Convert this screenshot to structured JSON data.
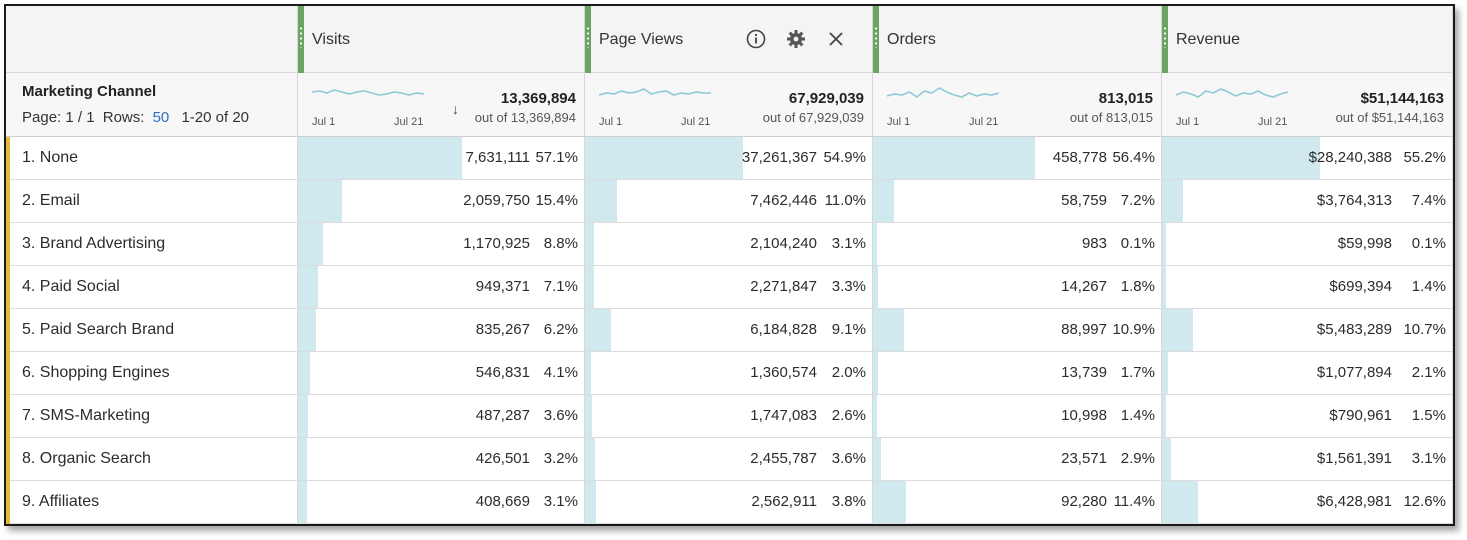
{
  "dimension": {
    "title": "Marketing Channel",
    "pager": {
      "page_label": "Page:",
      "page_value": "1 / 1",
      "rows_label": "Rows:",
      "rows_value": "50",
      "range": "1-20 of 20"
    }
  },
  "columns": [
    {
      "title": "Visits",
      "total": "13,369,894",
      "out_of": "out of 13,369,894",
      "spark_start": "Jul 1",
      "spark_end": "Jul 21",
      "sorted": true,
      "sort_glyph": "↓",
      "show_icons": false
    },
    {
      "title": "Page Views",
      "total": "67,929,039",
      "out_of": "out of 67,929,039",
      "spark_start": "Jul 1",
      "spark_end": "Jul 21",
      "sorted": false,
      "show_icons": true
    },
    {
      "title": "Orders",
      "total": "813,015",
      "out_of": "out of 813,015",
      "spark_start": "Jul 1",
      "spark_end": "Jul 21",
      "sorted": false,
      "show_icons": false
    },
    {
      "title": "Revenue",
      "total": "$51,144,163",
      "out_of": "out of $51,144,163",
      "spark_start": "Jul 1",
      "spark_end": "Jul 21",
      "sorted": false,
      "show_icons": false
    }
  ],
  "icons": {
    "info": "info-icon",
    "settings": "gear-icon",
    "close": "close-icon"
  },
  "rows": [
    {
      "name": "1.  None",
      "values": [
        {
          "v": "7,631,111",
          "p": "57.1%",
          "f": 0.571
        },
        {
          "v": "37,261,367",
          "p": "54.9%",
          "f": 0.549
        },
        {
          "v": "458,778",
          "p": "56.4%",
          "f": 0.564
        },
        {
          "v": "$28,240,388",
          "p": "55.2%",
          "f": 0.552
        }
      ]
    },
    {
      "name": "2.  Email",
      "values": [
        {
          "v": "2,059,750",
          "p": "15.4%",
          "f": 0.154
        },
        {
          "v": "7,462,446",
          "p": "11.0%",
          "f": 0.11
        },
        {
          "v": "58,759",
          "p": "7.2%",
          "f": 0.072
        },
        {
          "v": "$3,764,313",
          "p": "7.4%",
          "f": 0.074
        }
      ]
    },
    {
      "name": "3.  Brand Advertising",
      "values": [
        {
          "v": "1,170,925",
          "p": "8.8%",
          "f": 0.088
        },
        {
          "v": "2,104,240",
          "p": "3.1%",
          "f": 0.031
        },
        {
          "v": "983",
          "p": "0.1%",
          "f": 0.001
        },
        {
          "v": "$59,998",
          "p": "0.1%",
          "f": 0.001
        }
      ]
    },
    {
      "name": "4.  Paid Social",
      "values": [
        {
          "v": "949,371",
          "p": "7.1%",
          "f": 0.071
        },
        {
          "v": "2,271,847",
          "p": "3.3%",
          "f": 0.033
        },
        {
          "v": "14,267",
          "p": "1.8%",
          "f": 0.018
        },
        {
          "v": "$699,394",
          "p": "1.4%",
          "f": 0.014
        }
      ]
    },
    {
      "name": "5.  Paid Search Brand",
      "values": [
        {
          "v": "835,267",
          "p": "6.2%",
          "f": 0.062
        },
        {
          "v": "6,184,828",
          "p": "9.1%",
          "f": 0.091
        },
        {
          "v": "88,997",
          "p": "10.9%",
          "f": 0.109
        },
        {
          "v": "$5,483,289",
          "p": "10.7%",
          "f": 0.107
        }
      ]
    },
    {
      "name": "6.  Shopping Engines",
      "values": [
        {
          "v": "546,831",
          "p": "4.1%",
          "f": 0.041
        },
        {
          "v": "1,360,574",
          "p": "2.0%",
          "f": 0.02
        },
        {
          "v": "13,739",
          "p": "1.7%",
          "f": 0.017
        },
        {
          "v": "$1,077,894",
          "p": "2.1%",
          "f": 0.021
        }
      ]
    },
    {
      "name": "7.  SMS-Marketing",
      "values": [
        {
          "v": "487,287",
          "p": "3.6%",
          "f": 0.036
        },
        {
          "v": "1,747,083",
          "p": "2.6%",
          "f": 0.026
        },
        {
          "v": "10,998",
          "p": "1.4%",
          "f": 0.014
        },
        {
          "v": "$790,961",
          "p": "1.5%",
          "f": 0.015
        }
      ]
    },
    {
      "name": "8.  Organic Search",
      "values": [
        {
          "v": "426,501",
          "p": "3.2%",
          "f": 0.032
        },
        {
          "v": "2,455,787",
          "p": "3.6%",
          "f": 0.036
        },
        {
          "v": "23,571",
          "p": "2.9%",
          "f": 0.029
        },
        {
          "v": "$1,561,391",
          "p": "3.1%",
          "f": 0.031
        }
      ]
    },
    {
      "name": "9.  Affiliates",
      "values": [
        {
          "v": "408,669",
          "p": "3.1%",
          "f": 0.031
        },
        {
          "v": "2,562,911",
          "p": "3.8%",
          "f": 0.038
        },
        {
          "v": "92,280",
          "p": "11.4%",
          "f": 0.114
        },
        {
          "v": "$6,428,981",
          "p": "12.6%",
          "f": 0.126
        }
      ]
    }
  ],
  "colors": {
    "bar": "#cfe9ee",
    "grip": "#6ba463",
    "row_marker": "#e2b93b",
    "link": "#2d6ec4"
  }
}
